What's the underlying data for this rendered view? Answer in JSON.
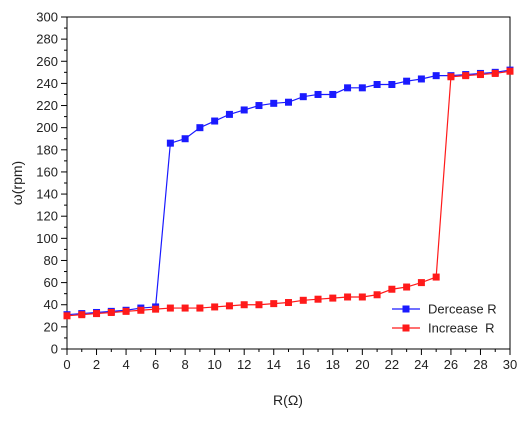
{
  "chart_data": {
    "type": "line",
    "xlabel": "R(Ω)",
    "ylabel": "ω(rpm)",
    "xlim": [
      0,
      30
    ],
    "ylim": [
      0,
      300
    ],
    "xticks": [
      "0",
      "2",
      "4",
      "6",
      "8",
      "10",
      "12",
      "14",
      "16",
      "18",
      "20",
      "22",
      "24",
      "26",
      "28",
      "30"
    ],
    "yticks": [
      "0",
      "20",
      "40",
      "60",
      "80",
      "100",
      "120",
      "140",
      "160",
      "180",
      "200",
      "220",
      "240",
      "260",
      "280",
      "300"
    ],
    "grid": false,
    "legend_position": "bottom-right",
    "series": [
      {
        "name": "Dercease R",
        "color": "#1a1aff",
        "marker": "square",
        "x": [
          0,
          1,
          2,
          3,
          4,
          5,
          6,
          7,
          8,
          9,
          10,
          11,
          12,
          13,
          14,
          15,
          16,
          17,
          18,
          19,
          20,
          21,
          22,
          23,
          24,
          25,
          26,
          27,
          28,
          29,
          30
        ],
        "y": [
          31,
          32,
          33,
          34,
          35,
          37,
          38,
          186,
          190,
          200,
          206,
          212,
          216,
          220,
          222,
          223,
          228,
          230,
          230,
          236,
          236,
          239,
          239,
          242,
          244,
          247,
          247,
          248,
          249,
          250,
          252
        ]
      },
      {
        "name": "Increase  R",
        "color": "#ff1a1a",
        "marker": "square",
        "x": [
          0,
          1,
          2,
          3,
          4,
          5,
          6,
          7,
          8,
          9,
          10,
          11,
          12,
          13,
          14,
          15,
          16,
          17,
          18,
          19,
          20,
          21,
          22,
          23,
          24,
          25,
          26,
          27,
          28,
          29,
          30
        ],
        "y": [
          30,
          31,
          32,
          33,
          34,
          35,
          36,
          37,
          37,
          37,
          38,
          39,
          40,
          40,
          41,
          42,
          44,
          45,
          46,
          47,
          47,
          49,
          54,
          56,
          60,
          65,
          246,
          247,
          248,
          249,
          251
        ]
      }
    ]
  }
}
